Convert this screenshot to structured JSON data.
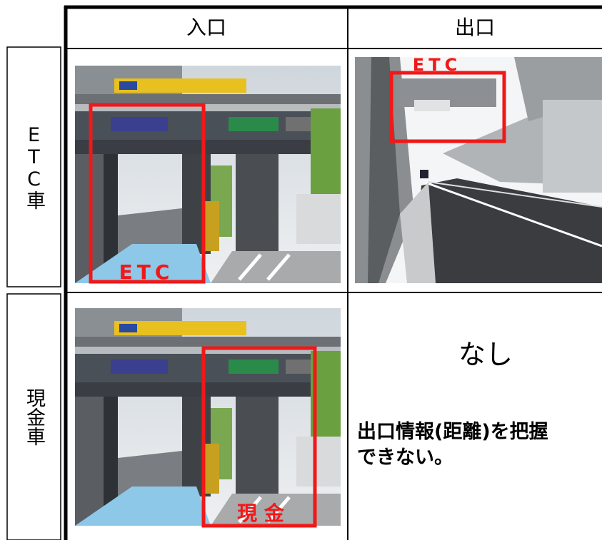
{
  "table": {
    "columns": [
      "入口",
      "出口"
    ],
    "rows": [
      {
        "label": "ETC車",
        "entrance_tag": "ETC",
        "exit_tag": "ETC"
      },
      {
        "label": "現金車",
        "entrance_tag": "現 金",
        "exit_status": "なし",
        "exit_note": [
          "出口情報(距離)を把握",
          "できない。"
        ]
      }
    ]
  }
}
